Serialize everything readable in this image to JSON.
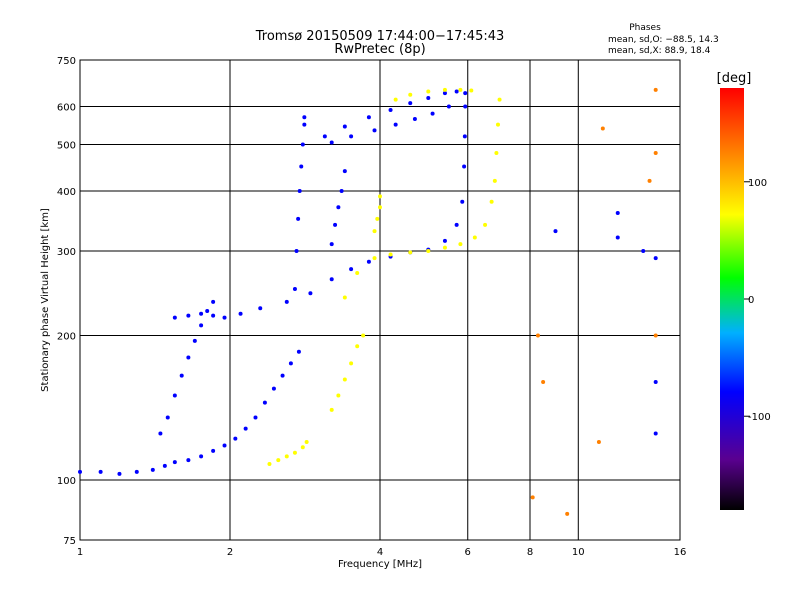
{
  "chart_data": {
    "type": "scatter",
    "title": "Tromsø 20150509 17:44:00−17:45:43",
    "subtitle": "RwPretec (8p)",
    "xlabel": "Frequency [MHz]",
    "ylabel": "Stationary phase Virtual Height [km]",
    "x_scale": "log",
    "y_scale": "log",
    "xlim": [
      1,
      16
    ],
    "ylim": [
      75,
      750
    ],
    "x_ticks": [
      1,
      2,
      4,
      6,
      8,
      10,
      16
    ],
    "y_ticks": [
      75,
      100,
      200,
      300,
      400,
      500,
      600,
      750
    ],
    "grid": true,
    "stats": {
      "header": "Phases",
      "line_o": "mean, sd,O: −88.5, 14.3",
      "line_x": "mean, sd,X:  88.9, 18.4"
    },
    "colorbar": {
      "label": "[deg]",
      "range": [
        -180,
        180
      ],
      "ticks": [
        -100,
        0,
        100
      ],
      "colors": [
        "#000000",
        "#5a0090",
        "#0000ff",
        "#00b0ff",
        "#00ff00",
        "#ffff00",
        "#ff8000",
        "#ff0000"
      ]
    },
    "traces": [
      {
        "name": "",
        "phase": -100,
        "points": [
          [
            1.0,
            104
          ],
          [
            1.1,
            104
          ],
          [
            1.2,
            103
          ],
          [
            1.3,
            104
          ],
          [
            1.4,
            105
          ],
          [
            1.48,
            107
          ],
          [
            1.55,
            109
          ],
          [
            1.65,
            110
          ],
          [
            1.75,
            112
          ],
          [
            1.85,
            115
          ],
          [
            1.95,
            118
          ],
          [
            2.05,
            122
          ],
          [
            2.15,
            128
          ],
          [
            2.25,
            135
          ],
          [
            2.35,
            145
          ],
          [
            2.45,
            155
          ],
          [
            2.55,
            165
          ],
          [
            2.65,
            175
          ],
          [
            2.75,
            185
          ]
        ]
      },
      {
        "name": "",
        "phase": -100,
        "points": [
          [
            1.45,
            125
          ],
          [
            1.5,
            135
          ],
          [
            1.55,
            150
          ],
          [
            1.6,
            165
          ],
          [
            1.65,
            180
          ],
          [
            1.7,
            195
          ],
          [
            1.75,
            210
          ],
          [
            1.8,
            225
          ],
          [
            1.85,
            235
          ]
        ]
      },
      {
        "name": "",
        "phase": -100,
        "points": [
          [
            1.55,
            218
          ],
          [
            1.65,
            220
          ],
          [
            1.75,
            222
          ],
          [
            1.85,
            220
          ],
          [
            1.95,
            218
          ],
          [
            2.1,
            222
          ],
          [
            2.3,
            228
          ],
          [
            2.6,
            235
          ],
          [
            2.9,
            245
          ],
          [
            3.2,
            262
          ],
          [
            3.5,
            275
          ],
          [
            3.8,
            285
          ],
          [
            4.2,
            292
          ],
          [
            4.6,
            298
          ],
          [
            5.0,
            302
          ],
          [
            5.4,
            315
          ],
          [
            5.7,
            340
          ],
          [
            5.85,
            380
          ],
          [
            5.9,
            450
          ],
          [
            5.92,
            520
          ],
          [
            5.93,
            600
          ],
          [
            5.93,
            640
          ]
        ]
      },
      {
        "name": "",
        "phase": -100,
        "points": [
          [
            2.7,
            250
          ],
          [
            2.72,
            300
          ],
          [
            2.74,
            350
          ],
          [
            2.76,
            400
          ],
          [
            2.78,
            450
          ],
          [
            2.8,
            500
          ],
          [
            2.82,
            550
          ],
          [
            2.82,
            570
          ]
        ]
      },
      {
        "name": "",
        "phase": -100,
        "points": [
          [
            3.2,
            310
          ],
          [
            3.25,
            340
          ],
          [
            3.3,
            370
          ],
          [
            3.35,
            400
          ],
          [
            3.4,
            440
          ]
        ]
      },
      {
        "name": "",
        "phase": -100,
        "points": [
          [
            3.1,
            520
          ],
          [
            3.4,
            545
          ],
          [
            3.8,
            570
          ],
          [
            4.2,
            590
          ],
          [
            4.6,
            610
          ],
          [
            5.0,
            625
          ],
          [
            5.4,
            640
          ],
          [
            5.7,
            645
          ]
        ]
      },
      {
        "name": "",
        "phase": -100,
        "points": [
          [
            3.2,
            505
          ],
          [
            3.5,
            520
          ],
          [
            3.9,
            535
          ],
          [
            4.3,
            550
          ],
          [
            4.7,
            565
          ],
          [
            5.1,
            580
          ],
          [
            5.5,
            600
          ]
        ]
      },
      {
        "name": "",
        "phase": 100,
        "points": [
          [
            2.4,
            108
          ],
          [
            2.5,
            110
          ],
          [
            2.6,
            112
          ],
          [
            2.7,
            114
          ],
          [
            2.8,
            117
          ],
          [
            2.85,
            120
          ]
        ]
      },
      {
        "name": "",
        "phase": 100,
        "points": [
          [
            3.2,
            140
          ],
          [
            3.3,
            150
          ],
          [
            3.4,
            162
          ],
          [
            3.5,
            175
          ],
          [
            3.6,
            190
          ],
          [
            3.7,
            200
          ]
        ]
      },
      {
        "name": "",
        "phase": 100,
        "points": [
          [
            3.4,
            240
          ],
          [
            3.6,
            270
          ],
          [
            3.9,
            290
          ],
          [
            4.2,
            295
          ],
          [
            4.6,
            298
          ],
          [
            5.0,
            300
          ],
          [
            5.4,
            305
          ],
          [
            5.8,
            310
          ],
          [
            6.2,
            320
          ],
          [
            6.5,
            340
          ],
          [
            6.7,
            380
          ],
          [
            6.8,
            420
          ],
          [
            6.85,
            480
          ],
          [
            6.9,
            550
          ],
          [
            6.95,
            620
          ]
        ]
      },
      {
        "name": "",
        "phase": 100,
        "points": [
          [
            3.9,
            330
          ],
          [
            3.95,
            350
          ],
          [
            4.0,
            370
          ],
          [
            4.0,
            390
          ]
        ]
      },
      {
        "name": "",
        "phase": 100,
        "points": [
          [
            4.3,
            620
          ],
          [
            4.6,
            635
          ],
          [
            5.0,
            645
          ],
          [
            5.4,
            650
          ],
          [
            5.8,
            650
          ],
          [
            6.1,
            648
          ]
        ]
      },
      {
        "name": "",
        "phase": -100,
        "points": [
          [
            9.0,
            330
          ],
          [
            12.0,
            320
          ],
          [
            12.0,
            360
          ],
          [
            13.5,
            300
          ],
          [
            14.3,
            290
          ],
          [
            14.3,
            160
          ],
          [
            14.3,
            125
          ]
        ]
      },
      {
        "name": "",
        "phase": 140,
        "points": [
          [
            8.1,
            92
          ],
          [
            8.3,
            200
          ],
          [
            8.5,
            160
          ],
          [
            9.5,
            85
          ],
          [
            11.2,
            540
          ],
          [
            11.0,
            120
          ],
          [
            13.9,
            420
          ],
          [
            14.3,
            480
          ],
          [
            14.3,
            650
          ],
          [
            14.3,
            200
          ]
        ]
      }
    ]
  }
}
